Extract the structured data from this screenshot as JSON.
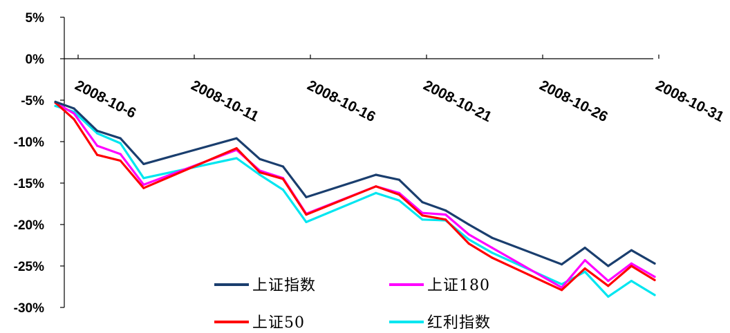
{
  "chart_data": {
    "type": "line",
    "title": "",
    "xlabel": "",
    "ylabel": "",
    "ylim": [
      -30,
      5
    ],
    "y_ticks": [
      {
        "value": 5,
        "label": "5%"
      },
      {
        "value": 0,
        "label": "0%"
      },
      {
        "value": -5,
        "label": "-5%"
      },
      {
        "value": -10,
        "label": "-10%"
      },
      {
        "value": -15,
        "label": "-15%"
      },
      {
        "value": -20,
        "label": "-20%"
      },
      {
        "value": -25,
        "label": "-25%"
      },
      {
        "value": -30,
        "label": "-30%"
      }
    ],
    "x_ticks": [
      {
        "value": 0,
        "label": "2008-10-6"
      },
      {
        "value": 5,
        "label": "2008-10-11"
      },
      {
        "value": 10,
        "label": "2008-10-16"
      },
      {
        "value": 15,
        "label": "2008-10-21"
      },
      {
        "value": 20,
        "label": "2008-10-26"
      },
      {
        "value": 25,
        "label": "2008-10-31"
      }
    ],
    "xlim": [
      -1,
      26
    ],
    "x": [
      -0.8,
      0,
      1,
      2,
      3,
      7,
      8,
      9,
      10,
      13,
      14,
      15,
      16,
      17,
      18,
      21,
      22,
      23,
      24,
      25
    ],
    "grid": false,
    "legend_position": "bottom-inside",
    "series": [
      {
        "name": "上证指数",
        "color": "#1a3e6e",
        "values": [
          -5.2,
          -6.0,
          -8.7,
          -9.6,
          -12.7,
          -9.6,
          -12.1,
          -13.0,
          -16.7,
          -14.0,
          -14.6,
          -17.3,
          -18.3,
          -20.0,
          -21.6,
          -24.8,
          -22.8,
          -25.0,
          -23.1,
          -24.7
        ]
      },
      {
        "name": "上证180",
        "color": "#ff00ff",
        "values": [
          -5.3,
          -6.6,
          -10.5,
          -11.5,
          -15.2,
          -11.0,
          -13.5,
          -14.4,
          -18.7,
          -15.4,
          -16.2,
          -18.6,
          -18.8,
          -21.2,
          -22.8,
          -27.6,
          -24.3,
          -26.8,
          -24.7,
          -26.3
        ]
      },
      {
        "name": "上证50",
        "color": "#ff0000",
        "values": [
          -5.3,
          -7.3,
          -11.6,
          -12.3,
          -15.6,
          -10.8,
          -13.7,
          -14.5,
          -18.8,
          -15.4,
          -16.4,
          -18.9,
          -19.4,
          -22.3,
          -24.0,
          -27.9,
          -25.3,
          -27.4,
          -25.0,
          -26.7
        ]
      },
      {
        "name": "红利指数",
        "color": "#00e6f0",
        "values": [
          -5.7,
          -6.4,
          -9.0,
          -10.2,
          -14.4,
          -12.0,
          -14.0,
          -15.8,
          -19.7,
          -16.2,
          -17.1,
          -19.4,
          -19.5,
          -21.8,
          -23.4,
          -27.2,
          -25.7,
          -28.7,
          -26.8,
          -28.5
        ]
      }
    ]
  }
}
